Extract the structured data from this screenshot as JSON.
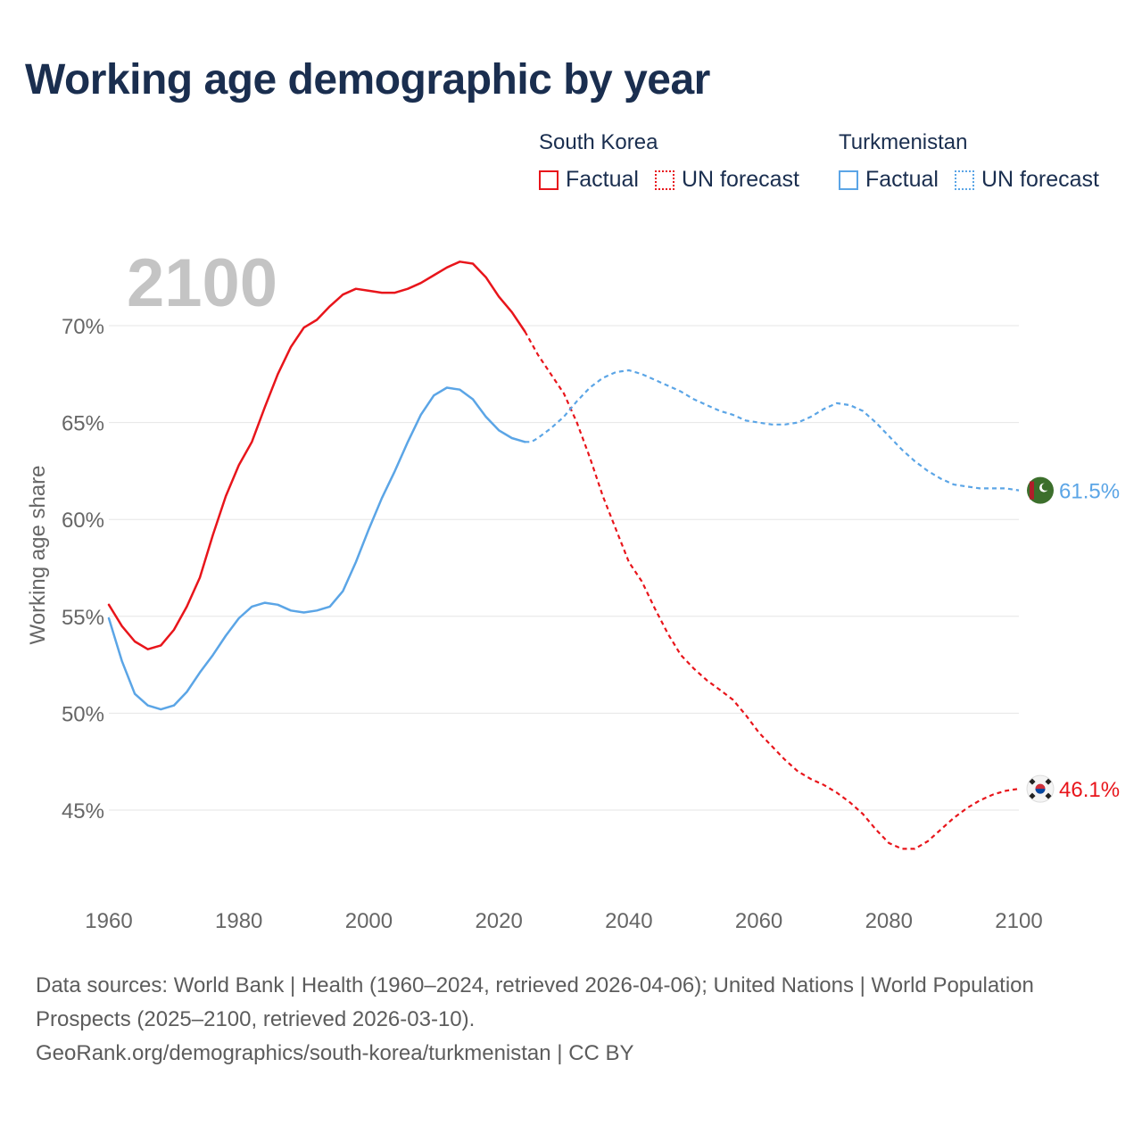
{
  "title": "Working age demographic by year",
  "year_watermark": "2100",
  "legend": {
    "groups": [
      {
        "country": "South Korea",
        "color": "#e8151b",
        "factual_label": "Factual",
        "forecast_label": "UN forecast"
      },
      {
        "country": "Turkmenistan",
        "color": "#5ba5e6",
        "factual_label": "Factual",
        "forecast_label": "UN forecast"
      }
    ]
  },
  "chart_data": {
    "type": "line",
    "title": "Working age demographic by year",
    "xlabel": "",
    "ylabel": "Working age share",
    "xlim": [
      1960,
      2100
    ],
    "ylim": [
      41,
      73.5
    ],
    "x_ticks": [
      1960,
      1980,
      2000,
      2020,
      2040,
      2060,
      2080,
      2100
    ],
    "x_tick_labels": [
      "1960",
      "1980",
      "2000",
      "2020",
      "2040",
      "2060",
      "2080",
      "2100"
    ],
    "y_ticks": [
      45,
      50,
      55,
      60,
      65,
      70
    ],
    "y_tick_labels": [
      "45%",
      "50%",
      "55%",
      "60%",
      "65%",
      "70%"
    ],
    "grid": true,
    "factual_range": [
      1960,
      2024
    ],
    "forecast_range": [
      2025,
      2100
    ],
    "series": [
      {
        "name": "South Korea",
        "color": "#e8151b",
        "end_label": "46.1%",
        "flag": "south-korea-flag",
        "x": [
          1960,
          1962,
          1964,
          1966,
          1968,
          1970,
          1972,
          1974,
          1976,
          1978,
          1980,
          1982,
          1984,
          1986,
          1988,
          1990,
          1992,
          1994,
          1996,
          1998,
          2000,
          2002,
          2004,
          2006,
          2008,
          2010,
          2012,
          2014,
          2016,
          2018,
          2020,
          2022,
          2024,
          2025,
          2026,
          2028,
          2030,
          2032,
          2034,
          2036,
          2038,
          2040,
          2042,
          2044,
          2046,
          2048,
          2050,
          2052,
          2054,
          2056,
          2058,
          2060,
          2062,
          2064,
          2066,
          2068,
          2070,
          2072,
          2074,
          2076,
          2078,
          2080,
          2082,
          2084,
          2086,
          2088,
          2090,
          2092,
          2094,
          2096,
          2098,
          2100
        ],
        "values": [
          55.6,
          54.5,
          53.7,
          53.3,
          53.5,
          54.3,
          55.5,
          57.0,
          59.2,
          61.2,
          62.8,
          64.0,
          65.8,
          67.5,
          68.9,
          69.9,
          70.3,
          71.0,
          71.6,
          71.9,
          71.8,
          71.7,
          71.7,
          71.9,
          72.2,
          72.6,
          73.0,
          73.3,
          73.2,
          72.5,
          71.5,
          70.7,
          69.7,
          69.1,
          68.5,
          67.5,
          66.5,
          65.0,
          63.2,
          61.2,
          59.5,
          57.8,
          56.8,
          55.4,
          54.1,
          53.0,
          52.3,
          51.7,
          51.2,
          50.7,
          49.9,
          49.0,
          48.3,
          47.6,
          47.0,
          46.6,
          46.3,
          45.9,
          45.4,
          44.8,
          44.0,
          43.3,
          43.0,
          43.0,
          43.4,
          44.0,
          44.6,
          45.1,
          45.5,
          45.8,
          46.0,
          46.1
        ]
      },
      {
        "name": "Turkmenistan",
        "color": "#5ba5e6",
        "end_label": "61.5%",
        "flag": "turkmenistan-flag",
        "x": [
          1960,
          1962,
          1964,
          1966,
          1968,
          1970,
          1972,
          1974,
          1976,
          1978,
          1980,
          1982,
          1984,
          1986,
          1988,
          1990,
          1992,
          1994,
          1996,
          1998,
          2000,
          2002,
          2004,
          2006,
          2008,
          2010,
          2012,
          2014,
          2016,
          2018,
          2020,
          2022,
          2024,
          2025,
          2026,
          2028,
          2030,
          2032,
          2034,
          2036,
          2038,
          2040,
          2042,
          2044,
          2046,
          2048,
          2050,
          2052,
          2054,
          2056,
          2058,
          2060,
          2062,
          2064,
          2066,
          2068,
          2070,
          2072,
          2074,
          2076,
          2078,
          2080,
          2082,
          2084,
          2086,
          2088,
          2090,
          2092,
          2094,
          2096,
          2098,
          2100
        ],
        "values": [
          54.9,
          52.7,
          51.0,
          50.4,
          50.2,
          50.4,
          51.1,
          52.1,
          53.0,
          54.0,
          54.9,
          55.5,
          55.7,
          55.6,
          55.3,
          55.2,
          55.3,
          55.5,
          56.3,
          57.8,
          59.5,
          61.1,
          62.5,
          64.0,
          65.4,
          66.4,
          66.8,
          66.7,
          66.2,
          65.3,
          64.6,
          64.2,
          64.0,
          64.0,
          64.2,
          64.7,
          65.3,
          66.1,
          66.8,
          67.3,
          67.6,
          67.7,
          67.5,
          67.2,
          66.9,
          66.6,
          66.2,
          65.9,
          65.6,
          65.4,
          65.1,
          65.0,
          64.9,
          64.9,
          65.0,
          65.3,
          65.7,
          66.0,
          65.9,
          65.6,
          65.0,
          64.3,
          63.6,
          63.0,
          62.5,
          62.1,
          61.8,
          61.7,
          61.6,
          61.6,
          61.6,
          61.5
        ]
      }
    ]
  },
  "footer": {
    "line1": "Data sources: World Bank | Health (1960–2024, retrieved 2026-04-06); United Nations | World Population Prospects (2025–2100, retrieved 2026-03-10).",
    "line2": "GeoRank.org/demographics/south-korea/turkmenistan | CC BY"
  }
}
